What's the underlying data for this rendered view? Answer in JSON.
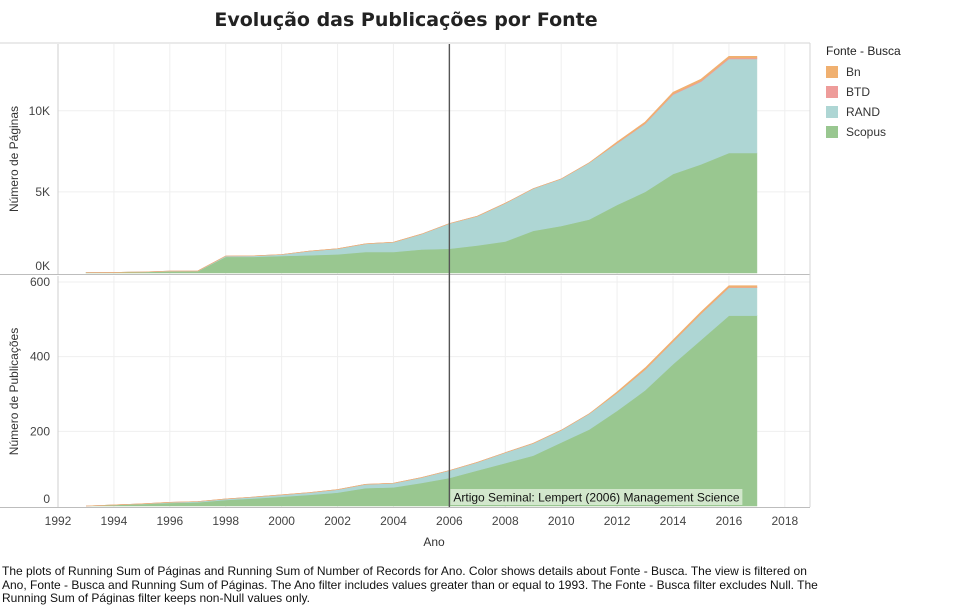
{
  "title": "Evolução das Publicações por Fonte",
  "legend": {
    "title": "Fonte - Busca",
    "items": [
      {
        "name": "Bn",
        "color": "#f0b070"
      },
      {
        "name": "BTD",
        "color": "#ee9c9a"
      },
      {
        "name": "RAND",
        "color": "#aed6d4"
      },
      {
        "name": "Scopus",
        "color": "#99c790"
      }
    ]
  },
  "caption": "The plots of Running Sum of Páginas and Running Sum of Number of Records for Ano.  Color shows details about Fonte - Busca. The view is filtered on Ano, Fonte - Busca and Running Sum of Páginas. The Ano filter includes values greater than or equal to 1993. The Fonte - Busca filter excludes Null. The Running Sum of Páginas filter keeps non-Null values only.",
  "chart_data": [
    {
      "type": "area",
      "stacked": true,
      "ylabel": "Número de Páginas",
      "xlabel": "Ano",
      "x": [
        1993,
        1994,
        1995,
        1996,
        1997,
        1998,
        1999,
        2000,
        2001,
        2002,
        2003,
        2004,
        2005,
        2006,
        2007,
        2008,
        2009,
        2010,
        2011,
        2012,
        2013,
        2014,
        2015,
        2016,
        2017
      ],
      "ylim": [
        0,
        13500
      ],
      "yticks": [
        {
          "value": 0,
          "label": "0K"
        },
        {
          "value": 5000,
          "label": "5K"
        },
        {
          "value": 10000,
          "label": "10K"
        }
      ],
      "series": [
        {
          "name": "Scopus",
          "values": [
            30,
            40,
            60,
            100,
            110,
            1000,
            1000,
            1050,
            1100,
            1150,
            1300,
            1300,
            1450,
            1500,
            1700,
            1950,
            2600,
            2900,
            3300,
            4200,
            5000,
            6100,
            6700,
            7400,
            7400
          ]
        },
        {
          "name": "RAND",
          "values": [
            0,
            0,
            0,
            20,
            20,
            50,
            60,
            90,
            250,
            350,
            500,
            600,
            950,
            1550,
            1800,
            2350,
            2600,
            2900,
            3500,
            3800,
            4200,
            4900,
            5100,
            5800,
            5800
          ]
        },
        {
          "name": "BTD",
          "values": [
            0,
            0,
            0,
            0,
            0,
            0,
            0,
            0,
            0,
            0,
            0,
            0,
            0,
            0,
            0,
            0,
            0,
            0,
            0,
            20,
            30,
            40,
            50,
            60,
            60
          ]
        },
        {
          "name": "Bn",
          "values": [
            0,
            0,
            0,
            0,
            0,
            0,
            0,
            0,
            0,
            0,
            0,
            0,
            0,
            0,
            0,
            0,
            0,
            0,
            0,
            60,
            80,
            100,
            100,
            100,
            100
          ]
        }
      ]
    },
    {
      "type": "area",
      "stacked": true,
      "ylabel": "Número de Publicações",
      "xlabel": "Ano",
      "x": [
        1993,
        1994,
        1995,
        1996,
        1997,
        1998,
        1999,
        2000,
        2001,
        2002,
        2003,
        2004,
        2005,
        2006,
        2007,
        2008,
        2009,
        2010,
        2011,
        2012,
        2013,
        2014,
        2015,
        2016,
        2017
      ],
      "ylim": [
        0,
        600
      ],
      "yticks": [
        {
          "value": 0,
          "label": "0"
        },
        {
          "value": 200,
          "label": "200"
        },
        {
          "value": 400,
          "label": "400"
        },
        {
          "value": 600,
          "label": "600"
        }
      ],
      "xticks": [
        "1992",
        "1994",
        "1996",
        "1998",
        "2000",
        "2002",
        "2004",
        "2006",
        "2008",
        "2010",
        "2012",
        "2014",
        "2016",
        "2018"
      ],
      "series": [
        {
          "name": "Scopus",
          "values": [
            0,
            3,
            5,
            8,
            10,
            16,
            20,
            25,
            30,
            36,
            48,
            50,
            62,
            75,
            95,
            115,
            135,
            170,
            205,
            255,
            310,
            380,
            445,
            510,
            510
          ]
        },
        {
          "name": "RAND",
          "values": [
            0,
            0,
            1,
            2,
            2,
            3,
            4,
            5,
            6,
            8,
            10,
            11,
            14,
            20,
            22,
            28,
            33,
            33,
            42,
            48,
            55,
            60,
            70,
            75,
            75
          ]
        },
        {
          "name": "BTD",
          "values": [
            0,
            0,
            0,
            0,
            0,
            0,
            0,
            0,
            0,
            0,
            0,
            0,
            0,
            0,
            0,
            0,
            0,
            0,
            0,
            0,
            1,
            1,
            1,
            1,
            1
          ]
        },
        {
          "name": "Bn",
          "values": [
            0,
            0,
            0,
            0,
            0,
            0,
            0,
            0,
            0,
            0,
            0,
            0,
            0,
            0,
            0,
            0,
            0,
            0,
            0,
            3,
            4,
            4,
            4,
            4,
            4
          ]
        }
      ]
    }
  ],
  "reference_line": {
    "x": 2006,
    "label": "Artigo Seminal: Lempert (2006) Management Science"
  }
}
